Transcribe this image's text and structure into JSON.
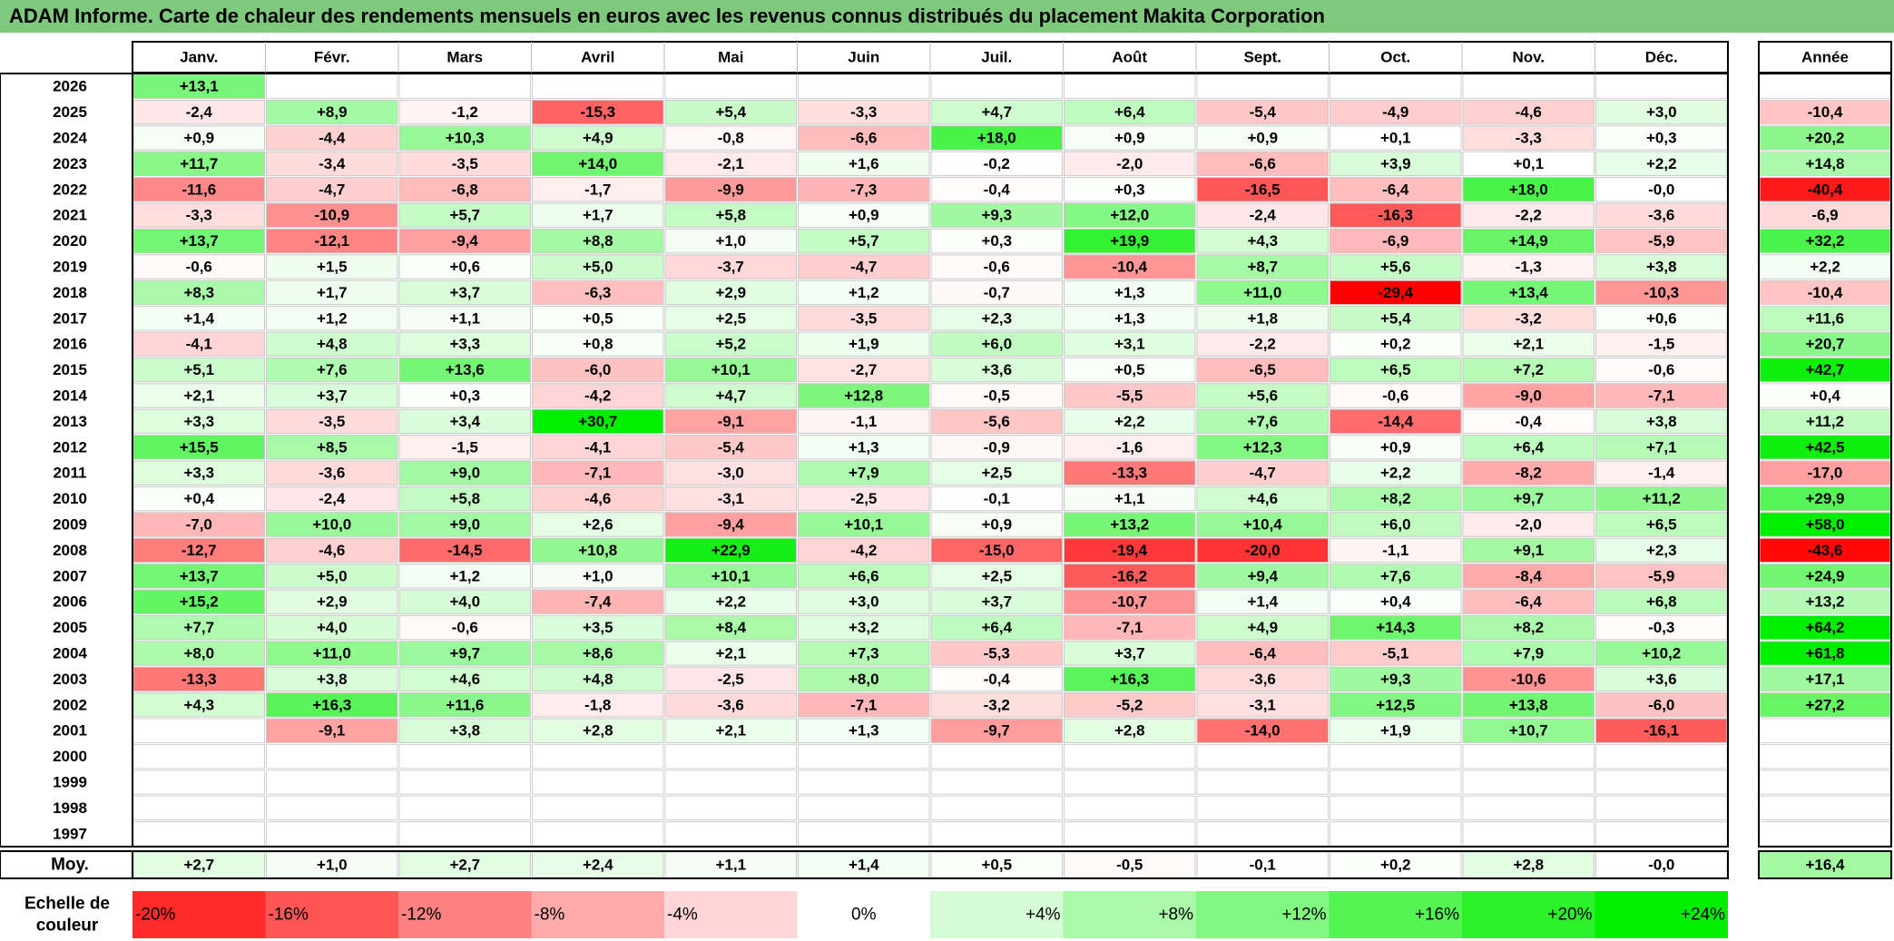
{
  "title": "ADAM Informe. Carte de chaleur des rendements mensuels en euros avec les revenus connus distribués du placement Makita Corporation",
  "chart_data": {
    "type": "heatmap",
    "months": [
      "Janv.",
      "Févr.",
      "Mars",
      "Avril",
      "Mai",
      "Juin",
      "Juil.",
      "Août",
      "Sept.",
      "Oct.",
      "Nov.",
      "Déc."
    ],
    "year_header": "Année",
    "rows": [
      {
        "year": "2026",
        "months": [
          "+13,1",
          "",
          "",
          "",
          "",
          "",
          "",
          "",
          "",
          "",
          "",
          ""
        ],
        "annual": ""
      },
      {
        "year": "2025",
        "months": [
          "-2,4",
          "+8,9",
          "-1,2",
          "-15,3",
          "+5,4",
          "-3,3",
          "+4,7",
          "+6,4",
          "-5,4",
          "-4,9",
          "-4,6",
          "+3,0"
        ],
        "annual": "-10,4"
      },
      {
        "year": "2024",
        "months": [
          "+0,9",
          "-4,4",
          "+10,3",
          "+4,9",
          "-0,8",
          "-6,6",
          "+18,0",
          "+0,9",
          "+0,9",
          "+0,1",
          "-3,3",
          "+0,3"
        ],
        "annual": "+20,2"
      },
      {
        "year": "2023",
        "months": [
          "+11,7",
          "-3,4",
          "-3,5",
          "+14,0",
          "-2,1",
          "+1,6",
          "-0,2",
          "-2,0",
          "-6,6",
          "+3,9",
          "+0,1",
          "+2,2"
        ],
        "annual": "+14,8"
      },
      {
        "year": "2022",
        "months": [
          "-11,6",
          "-4,7",
          "-6,8",
          "-1,7",
          "-9,9",
          "-7,3",
          "-0,4",
          "+0,3",
          "-16,5",
          "-6,4",
          "+18,0",
          "-0,0"
        ],
        "annual": "-40,4"
      },
      {
        "year": "2021",
        "months": [
          "-3,3",
          "-10,9",
          "+5,7",
          "+1,7",
          "+5,8",
          "+0,9",
          "+9,3",
          "+12,0",
          "-2,4",
          "-16,3",
          "-2,2",
          "-3,6"
        ],
        "annual": "-6,9"
      },
      {
        "year": "2020",
        "months": [
          "+13,7",
          "-12,1",
          "-9,4",
          "+8,8",
          "+1,0",
          "+5,7",
          "+0,3",
          "+19,9",
          "+4,3",
          "-6,9",
          "+14,9",
          "-5,9"
        ],
        "annual": "+32,2"
      },
      {
        "year": "2019",
        "months": [
          "-0,6",
          "+1,5",
          "+0,6",
          "+5,0",
          "-3,7",
          "-4,7",
          "-0,6",
          "-10,4",
          "+8,7",
          "+5,6",
          "-1,3",
          "+3,8"
        ],
        "annual": "+2,2"
      },
      {
        "year": "2018",
        "months": [
          "+8,3",
          "+1,7",
          "+3,7",
          "-6,3",
          "+2,9",
          "+1,2",
          "-0,7",
          "+1,3",
          "+11,0",
          "-29,4",
          "+13,4",
          "-10,3"
        ],
        "annual": "-10,4"
      },
      {
        "year": "2017",
        "months": [
          "+1,4",
          "+1,2",
          "+1,1",
          "+0,5",
          "+2,5",
          "-3,5",
          "+2,3",
          "+1,3",
          "+1,8",
          "+5,4",
          "-3,2",
          "+0,6"
        ],
        "annual": "+11,6"
      },
      {
        "year": "2016",
        "months": [
          "-4,1",
          "+4,8",
          "+3,3",
          "+0,8",
          "+5,2",
          "+1,9",
          "+6,0",
          "+3,1",
          "-2,2",
          "+0,2",
          "+2,1",
          "-1,5"
        ],
        "annual": "+20,7"
      },
      {
        "year": "2015",
        "months": [
          "+5,1",
          "+7,6",
          "+13,6",
          "-6,0",
          "+10,1",
          "-2,7",
          "+3,6",
          "+0,5",
          "-6,5",
          "+6,5",
          "+7,2",
          "-0,6"
        ],
        "annual": "+42,7"
      },
      {
        "year": "2014",
        "months": [
          "+2,1",
          "+3,7",
          "+0,3",
          "-4,2",
          "+4,7",
          "+12,8",
          "-0,5",
          "-5,5",
          "+5,6",
          "-0,6",
          "-9,0",
          "-7,1"
        ],
        "annual": "+0,4"
      },
      {
        "year": "2013",
        "months": [
          "+3,3",
          "-3,5",
          "+3,4",
          "+30,7",
          "-9,1",
          "-1,1",
          "-5,6",
          "+2,2",
          "+7,6",
          "-14,4",
          "-0,4",
          "+3,8"
        ],
        "annual": "+11,2"
      },
      {
        "year": "2012",
        "months": [
          "+15,5",
          "+8,5",
          "-1,5",
          "-4,1",
          "-5,4",
          "+1,3",
          "-0,9",
          "-1,6",
          "+12,3",
          "+0,9",
          "+6,4",
          "+7,1"
        ],
        "annual": "+42,5"
      },
      {
        "year": "2011",
        "months": [
          "+3,3",
          "-3,6",
          "+9,0",
          "-7,1",
          "-3,0",
          "+7,9",
          "+2,5",
          "-13,3",
          "-4,7",
          "+2,2",
          "-8,2",
          "-1,4"
        ],
        "annual": "-17,0"
      },
      {
        "year": "2010",
        "months": [
          "+0,4",
          "-2,4",
          "+5,8",
          "-4,6",
          "-3,1",
          "-2,5",
          "-0,1",
          "+1,1",
          "+4,6",
          "+8,2",
          "+9,7",
          "+11,2"
        ],
        "annual": "+29,9"
      },
      {
        "year": "2009",
        "months": [
          "-7,0",
          "+10,0",
          "+9,0",
          "+2,6",
          "-9,4",
          "+10,1",
          "+0,9",
          "+13,2",
          "+10,4",
          "+6,0",
          "-2,0",
          "+6,5"
        ],
        "annual": "+58,0"
      },
      {
        "year": "2008",
        "months": [
          "-12,7",
          "-4,6",
          "-14,5",
          "+10,8",
          "+22,9",
          "-4,2",
          "-15,0",
          "-19,4",
          "-20,0",
          "-1,1",
          "+9,1",
          "+2,3"
        ],
        "annual": "-43,6"
      },
      {
        "year": "2007",
        "months": [
          "+13,7",
          "+5,0",
          "+1,2",
          "+1,0",
          "+10,1",
          "+6,6",
          "+2,5",
          "-16,2",
          "+9,4",
          "+7,6",
          "-8,4",
          "-5,9"
        ],
        "annual": "+24,9"
      },
      {
        "year": "2006",
        "months": [
          "+15,2",
          "+2,9",
          "+4,0",
          "-7,4",
          "+2,2",
          "+3,0",
          "+3,7",
          "-10,7",
          "+1,4",
          "+0,4",
          "-6,4",
          "+6,8"
        ],
        "annual": "+13,2"
      },
      {
        "year": "2005",
        "months": [
          "+7,7",
          "+4,0",
          "-0,6",
          "+3,5",
          "+8,4",
          "+3,2",
          "+6,4",
          "-7,1",
          "+4,9",
          "+14,3",
          "+8,2",
          "-0,3"
        ],
        "annual": "+64,2"
      },
      {
        "year": "2004",
        "months": [
          "+8,0",
          "+11,0",
          "+9,7",
          "+8,6",
          "+2,1",
          "+7,3",
          "-5,3",
          "+3,7",
          "-6,4",
          "-5,1",
          "+7,9",
          "+10,2"
        ],
        "annual": "+61,8"
      },
      {
        "year": "2003",
        "months": [
          "-13,3",
          "+3,8",
          "+4,6",
          "+4,8",
          "-2,5",
          "+8,0",
          "-0,4",
          "+16,3",
          "-3,6",
          "+9,3",
          "-10,6",
          "+3,6"
        ],
        "annual": "+17,1"
      },
      {
        "year": "2002",
        "months": [
          "+4,3",
          "+16,3",
          "+11,6",
          "-1,8",
          "-3,6",
          "-7,1",
          "-3,2",
          "-5,2",
          "-3,1",
          "+12,5",
          "+13,8",
          "-6,0"
        ],
        "annual": "+27,2"
      },
      {
        "year": "2001",
        "months": [
          "",
          "-9,1",
          "+3,8",
          "+2,8",
          "+2,1",
          "+1,3",
          "-9,7",
          "+2,8",
          "-14,0",
          "+1,9",
          "+10,7",
          "-16,1"
        ],
        "annual": ""
      },
      {
        "year": "2000",
        "months": [
          "",
          "",
          "",
          "",
          "",
          "",
          "",
          "",
          "",
          "",
          "",
          ""
        ],
        "annual": ""
      },
      {
        "year": "1999",
        "months": [
          "",
          "",
          "",
          "",
          "",
          "",
          "",
          "",
          "",
          "",
          "",
          ""
        ],
        "annual": ""
      },
      {
        "year": "1998",
        "months": [
          "",
          "",
          "",
          "",
          "",
          "",
          "",
          "",
          "",
          "",
          "",
          ""
        ],
        "annual": ""
      },
      {
        "year": "1997",
        "months": [
          "",
          "",
          "",
          "",
          "",
          "",
          "",
          "",
          "",
          "",
          "",
          ""
        ],
        "annual": ""
      }
    ],
    "average": {
      "label": "Moy.",
      "months": [
        "+2,7",
        "+1,0",
        "+2,7",
        "+2,4",
        "+1,1",
        "+1,4",
        "+0,5",
        "-0,5",
        "-0,1",
        "+0,2",
        "+2,8",
        "-0,0"
      ],
      "annual": "+16,4"
    },
    "scale": {
      "label_line1": "Echelle de",
      "label_line2": "couleur",
      "steps": [
        {
          "label": "-20%",
          "value": -20
        },
        {
          "label": "-16%",
          "value": -16
        },
        {
          "label": "-12%",
          "value": -12
        },
        {
          "label": "-8%",
          "value": -8
        },
        {
          "label": "-4%",
          "value": -4
        },
        {
          "label": "0%",
          "value": 0
        },
        {
          "label": "+4%",
          "value": 4
        },
        {
          "label": "+8%",
          "value": 8
        },
        {
          "label": "+12%",
          "value": 12
        },
        {
          "label": "+16%",
          "value": 16
        },
        {
          "label": "+20%",
          "value": 20
        },
        {
          "label": "+24%",
          "value": 24
        }
      ]
    },
    "colors": {
      "negative_max": "#ff0000",
      "positive_max": "#00ee00",
      "neutral": "#ffffff",
      "title_bar": "#7ec97e"
    }
  }
}
